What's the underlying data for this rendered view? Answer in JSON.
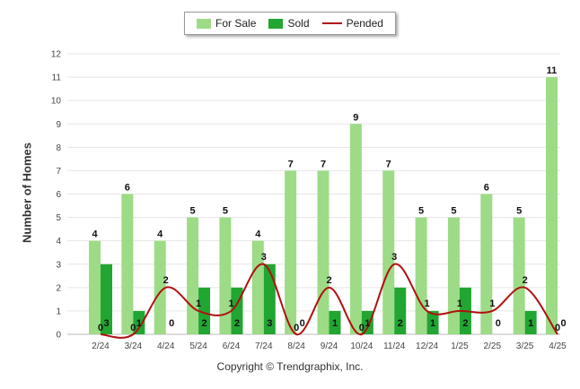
{
  "chart_data": {
    "type": "bar",
    "categories": [
      "2/24",
      "3/24",
      "4/24",
      "5/24",
      "6/24",
      "7/24",
      "8/24",
      "9/24",
      "10/24",
      "11/24",
      "12/24",
      "1/25",
      "2/25",
      "3/25",
      "4/25"
    ],
    "series": [
      {
        "name": "For Sale",
        "type": "bar",
        "color": "#9ddb87",
        "values": [
          4,
          6,
          4,
          5,
          5,
          4,
          7,
          7,
          9,
          7,
          5,
          5,
          6,
          5,
          11
        ]
      },
      {
        "name": "Sold",
        "type": "bar",
        "color": "#21a632",
        "values": [
          3,
          1,
          0,
          2,
          2,
          3,
          0,
          1,
          1,
          2,
          1,
          2,
          0,
          1,
          0
        ]
      },
      {
        "name": "Pended",
        "type": "line",
        "color": "#b01010",
        "values": [
          0,
          0,
          2,
          1,
          1,
          3,
          0,
          2,
          0,
          3,
          1,
          1,
          1,
          2,
          0
        ]
      }
    ],
    "ylabel": "Number of Homes",
    "ylim": [
      0,
      12
    ],
    "yticks": [
      0,
      1,
      2,
      3,
      4,
      5,
      6,
      7,
      8,
      9,
      10,
      11,
      12
    ],
    "grid": true,
    "legend_position": "top"
  },
  "footer": "Copyright © Trendgraphix, Inc."
}
